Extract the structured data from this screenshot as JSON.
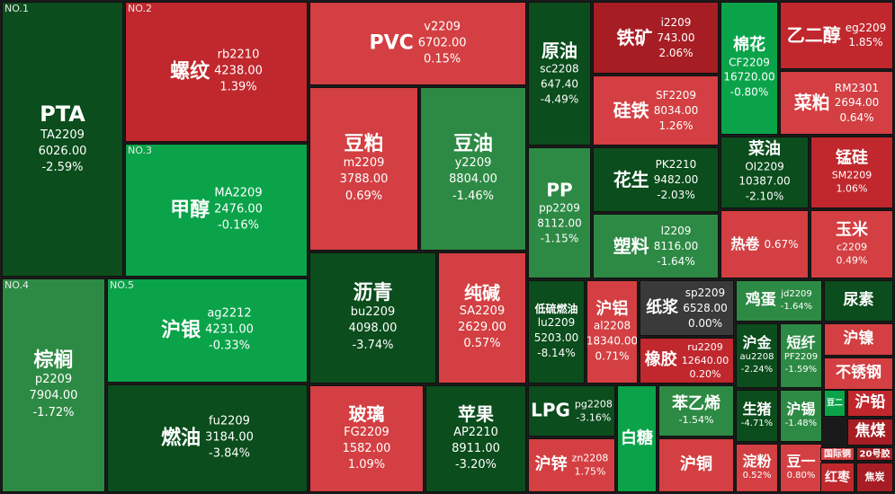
{
  "colors": {
    "up_strong": "#a61e24",
    "up_mid": "#c0282d",
    "up_light": "#d33f42",
    "flat": "#3a3a3a",
    "down_light": "#2d8a44",
    "down_mid": "#0a6e2a",
    "down_strong": "#0b4d1c",
    "down_bright": "#0aa34a",
    "background": "#1a1a1a"
  },
  "tiles": [
    {
      "name": "PTA",
      "code": "TA2209",
      "price": "6026.00",
      "change": "-2.59%",
      "rank": "NO.1"
    },
    {
      "name": "螺纹",
      "code": "rb2210",
      "price": "4238.00",
      "change": "1.39%",
      "rank": "NO.2"
    },
    {
      "name": "甲醇",
      "code": "MA2209",
      "price": "2476.00",
      "change": "-0.16%",
      "rank": "NO.3"
    },
    {
      "name": "棕榈",
      "code": "p2209",
      "price": "7904.00",
      "change": "-1.72%",
      "rank": "NO.4"
    },
    {
      "name": "沪银",
      "code": "ag2212",
      "price": "4231.00",
      "change": "-0.33%",
      "rank": "NO.5"
    },
    {
      "name": "燃油",
      "code": "fu2209",
      "price": "3184.00",
      "change": "-3.84%"
    },
    {
      "name": "PVC",
      "code": "v2209",
      "price": "6702.00",
      "change": "0.15%"
    },
    {
      "name": "豆粕",
      "code": "m2209",
      "price": "3788.00",
      "change": "0.69%"
    },
    {
      "name": "豆油",
      "code": "y2209",
      "price": "8804.00",
      "change": "-1.46%"
    },
    {
      "name": "沥青",
      "code": "bu2209",
      "price": "4098.00",
      "change": "-3.74%"
    },
    {
      "name": "纯碱",
      "code": "SA2209",
      "price": "2629.00",
      "change": "0.57%"
    },
    {
      "name": "玻璃",
      "code": "FG2209",
      "price": "1582.00",
      "change": "1.09%"
    },
    {
      "name": "苹果",
      "code": "AP2210",
      "price": "8911.00",
      "change": "-3.20%"
    },
    {
      "name": "原油",
      "code": "sc2208",
      "price": "647.40",
      "change": "-4.49%"
    },
    {
      "name": "PP",
      "code": "pp2209",
      "price": "8112.00",
      "change": "-1.15%"
    },
    {
      "name": "低硫燃油",
      "code": "lu2209",
      "price": "5203.00",
      "change": "-8.14%"
    },
    {
      "name": "LPG",
      "code": "pg2208",
      "price": "",
      "change": "-3.16%"
    },
    {
      "name": "沪锌",
      "code": "zn2208",
      "price": "",
      "change": "1.75%"
    },
    {
      "name": "铁矿",
      "code": "i2209",
      "price": "743.00",
      "change": "2.06%"
    },
    {
      "name": "硅铁",
      "code": "SF2209",
      "price": "8034.00",
      "change": "1.26%"
    },
    {
      "name": "花生",
      "code": "PK2210",
      "price": "9482.00",
      "change": "-2.03%"
    },
    {
      "name": "塑料",
      "code": "l2209",
      "price": "8116.00",
      "change": "-1.64%"
    },
    {
      "name": "沪铝",
      "code": "al2208",
      "price": "18340.00",
      "change": "0.71%"
    },
    {
      "name": "纸浆",
      "code": "sp2209",
      "price": "6528.00",
      "change": "0.00%"
    },
    {
      "name": "橡胶",
      "code": "ru2209",
      "price": "12640.00",
      "change": "0.20%"
    },
    {
      "name": "白糖",
      "code": "",
      "price": "",
      "change": ""
    },
    {
      "name": "苯乙烯",
      "code": "",
      "price": "",
      "change": "-1.54%"
    },
    {
      "name": "沪铜",
      "code": "",
      "price": "",
      "change": ""
    },
    {
      "name": "棉花",
      "code": "CF2209",
      "price": "16720.00",
      "change": "-0.80%"
    },
    {
      "name": "乙二醇",
      "code": "eg2209",
      "price": "",
      "change": "1.85%"
    },
    {
      "name": "菜粕",
      "code": "RM2301",
      "price": "2694.00",
      "change": "0.64%"
    },
    {
      "name": "菜油",
      "code": "OI2209",
      "price": "10387.00",
      "change": "-2.10%"
    },
    {
      "name": "锰硅",
      "code": "SM2209",
      "price": "",
      "change": "1.06%"
    },
    {
      "name": "热卷",
      "code": "",
      "price": "",
      "change": "0.67%"
    },
    {
      "name": "玉米",
      "code": "c2209",
      "price": "",
      "change": "0.49%"
    },
    {
      "name": "鸡蛋",
      "code": "jd2209",
      "price": "",
      "change": "-1.64%"
    },
    {
      "name": "尿素",
      "code": "",
      "price": "",
      "change": ""
    },
    {
      "name": "沪金",
      "code": "au2208",
      "price": "",
      "change": "-2.24%"
    },
    {
      "name": "短纤",
      "code": "PF2209",
      "price": "",
      "change": "-1.59%"
    },
    {
      "name": "沪镍",
      "code": "",
      "price": "",
      "change": ""
    },
    {
      "name": "不锈钢",
      "code": "",
      "price": "",
      "change": ""
    },
    {
      "name": "生猪",
      "code": "",
      "price": "",
      "change": "-4.71%"
    },
    {
      "name": "沪锡",
      "code": "",
      "price": "",
      "change": "-1.48%"
    },
    {
      "name": "豆二",
      "code": "",
      "price": "",
      "change": ""
    },
    {
      "name": "沪铅",
      "code": "",
      "price": "",
      "change": ""
    },
    {
      "name": "焦煤",
      "code": "",
      "price": "",
      "change": ""
    },
    {
      "name": "淀粉",
      "code": "",
      "price": "",
      "change": "0.52%"
    },
    {
      "name": "豆一",
      "code": "",
      "price": "",
      "change": "0.80%"
    },
    {
      "name": "国际铜",
      "code": "",
      "price": "",
      "change": ""
    },
    {
      "name": "20号胶",
      "code": "",
      "price": "",
      "change": ""
    },
    {
      "name": "红枣",
      "code": "",
      "price": "",
      "change": ""
    },
    {
      "name": "焦炭",
      "code": "",
      "price": "",
      "change": ""
    }
  ]
}
